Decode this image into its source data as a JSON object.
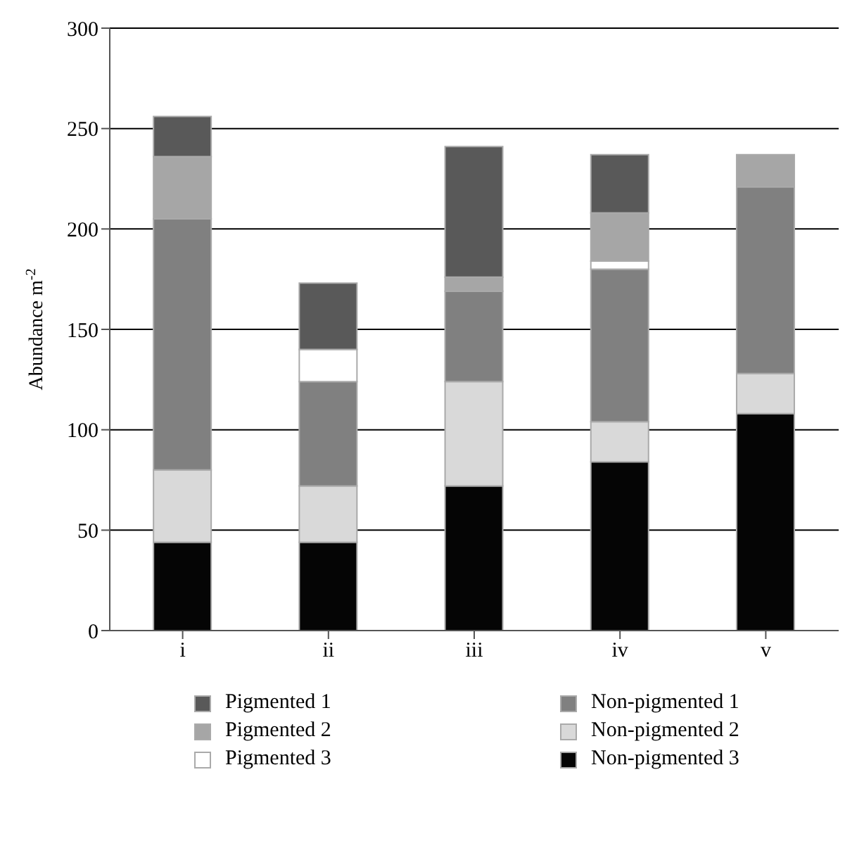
{
  "chart_data": {
    "type": "bar",
    "stacked": true,
    "ylabel": "Abundance m$^{-2}$",
    "categories": [
      "i",
      "ii",
      "iii",
      "iv",
      "v"
    ],
    "series": [
      {
        "name": "Non-pigmented 3",
        "color": "#050505",
        "values": [
          44,
          44,
          72,
          84,
          108
        ]
      },
      {
        "name": "Non-pigmented 2",
        "color": "#d9d9d9",
        "values": [
          36,
          28,
          52,
          20,
          20
        ]
      },
      {
        "name": "Non-pigmented 1",
        "color": "#808080",
        "values": [
          125,
          52,
          45,
          76,
          93
        ]
      },
      {
        "name": "Pigmented 3",
        "color": "#ffffff",
        "values": [
          0,
          16,
          0,
          4,
          0
        ]
      },
      {
        "name": "Pigmented 2",
        "color": "#a6a6a6",
        "values": [
          31,
          0,
          7,
          24,
          16
        ]
      },
      {
        "name": "Pigmented 1",
        "color": "#595959",
        "values": [
          20,
          33,
          65,
          29,
          0
        ]
      }
    ],
    "ylim": [
      0,
      300
    ],
    "yticks": [
      0,
      50,
      100,
      150,
      200,
      250,
      300
    ],
    "grid": "y",
    "legend": "bottom"
  }
}
